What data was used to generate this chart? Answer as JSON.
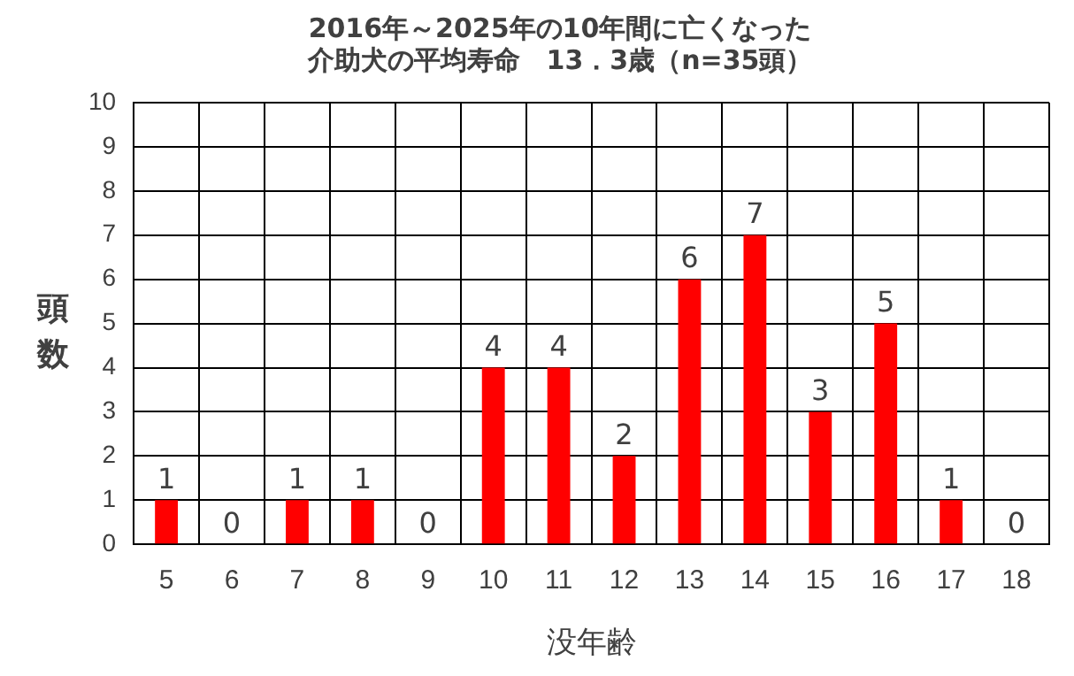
{
  "chart_data": {
    "type": "bar",
    "title": [
      "2016年～2025年の10年間に亡くなった",
      "介助犬の平均寿命　13．3歳（n=35頭）"
    ],
    "xlabel": "没年齢",
    "ylabel": "頭数",
    "categories": [
      "5",
      "6",
      "7",
      "8",
      "9",
      "10",
      "11",
      "12",
      "13",
      "14",
      "15",
      "16",
      "17",
      "18"
    ],
    "values": [
      1,
      0,
      1,
      1,
      0,
      4,
      4,
      2,
      6,
      7,
      3,
      5,
      1,
      0
    ],
    "color": "#ff0000",
    "ylim": [
      0,
      10
    ],
    "yticks": [
      0,
      1,
      2,
      3,
      4,
      5,
      6,
      7,
      8,
      9,
      10
    ],
    "grid": true,
    "data_labels": true
  }
}
